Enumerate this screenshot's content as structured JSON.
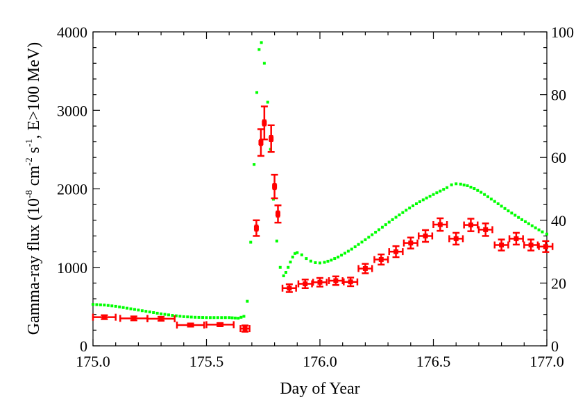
{
  "chart_data": {
    "type": "scatter",
    "title": "",
    "xlabel": "Day of Year",
    "ylabel_main": "Gamma-ray flux (10",
    "ylabel_sup1": "-8",
    "ylabel_mid1": " cm",
    "ylabel_sup2": "-2",
    "ylabel_mid2": " s",
    "ylabel_sup3": "-1",
    "ylabel_end": ", E>100 MeV)",
    "xlim": [
      175.0,
      177.0
    ],
    "ylim_left": [
      0,
      4000
    ],
    "ylim_right": [
      0,
      100
    ],
    "x_ticks": [
      175.0,
      175.5,
      176.0,
      176.5,
      177.0
    ],
    "x_tick_labels": [
      "175.0",
      "175.5",
      "176.0",
      "176.5",
      "177.0"
    ],
    "y_left_ticks": [
      0,
      1000,
      2000,
      3000,
      4000
    ],
    "y_left_tick_labels": [
      "0",
      "1000",
      "2000",
      "3000",
      "4000"
    ],
    "y_right_ticks": [
      0,
      20,
      40,
      60,
      80,
      100
    ],
    "y_right_tick_labels": [
      "0",
      "20",
      "40",
      "60",
      "80",
      "100"
    ],
    "grid": false,
    "colors": {
      "flux": "#ff0000",
      "model": "#00ff00"
    },
    "series": [
      {
        "axis": "left",
        "points": [
          {
            "x": 175.05,
            "y": 365,
            "xerr": 0.05,
            "yerr": 25
          },
          {
            "x": 175.18,
            "y": 350,
            "xerr": 0.06,
            "yerr": 25
          },
          {
            "x": 175.3,
            "y": 345,
            "xerr": 0.06,
            "yerr": 25
          },
          {
            "x": 175.43,
            "y": 265,
            "xerr": 0.06,
            "yerr": 20
          },
          {
            "x": 175.56,
            "y": 270,
            "xerr": 0.06,
            "yerr": 20
          },
          {
            "x": 175.67,
            "y": 220,
            "xerr": 0.02,
            "yerr": 40
          },
          {
            "x": 175.72,
            "y": 1500,
            "xerr": 0.005,
            "yerr": 100
          },
          {
            "x": 175.74,
            "y": 2590,
            "xerr": 0.005,
            "yerr": 170
          },
          {
            "x": 175.755,
            "y": 2840,
            "xerr": 0.005,
            "yerr": 210
          },
          {
            "x": 175.785,
            "y": 2640,
            "xerr": 0.005,
            "yerr": 170
          },
          {
            "x": 175.8,
            "y": 2030,
            "xerr": 0.005,
            "yerr": 150
          },
          {
            "x": 175.815,
            "y": 1680,
            "xerr": 0.005,
            "yerr": 110
          },
          {
            "x": 175.865,
            "y": 735,
            "xerr": 0.03,
            "yerr": 50
          },
          {
            "x": 175.935,
            "y": 790,
            "xerr": 0.03,
            "yerr": 55
          },
          {
            "x": 176.0,
            "y": 810,
            "xerr": 0.03,
            "yerr": 55
          },
          {
            "x": 176.07,
            "y": 830,
            "xerr": 0.03,
            "yerr": 55
          },
          {
            "x": 176.135,
            "y": 815,
            "xerr": 0.03,
            "yerr": 55
          },
          {
            "x": 176.2,
            "y": 985,
            "xerr": 0.03,
            "yerr": 60
          },
          {
            "x": 176.27,
            "y": 1100,
            "xerr": 0.03,
            "yerr": 65
          },
          {
            "x": 176.335,
            "y": 1200,
            "xerr": 0.03,
            "yerr": 70
          },
          {
            "x": 176.4,
            "y": 1310,
            "xerr": 0.03,
            "yerr": 70
          },
          {
            "x": 176.465,
            "y": 1400,
            "xerr": 0.03,
            "yerr": 75
          },
          {
            "x": 176.53,
            "y": 1545,
            "xerr": 0.03,
            "yerr": 80
          },
          {
            "x": 176.6,
            "y": 1365,
            "xerr": 0.03,
            "yerr": 75
          },
          {
            "x": 176.665,
            "y": 1540,
            "xerr": 0.03,
            "yerr": 80
          },
          {
            "x": 176.73,
            "y": 1480,
            "xerr": 0.03,
            "yerr": 80
          },
          {
            "x": 176.8,
            "y": 1285,
            "xerr": 0.03,
            "yerr": 70
          },
          {
            "x": 176.865,
            "y": 1365,
            "xerr": 0.03,
            "yerr": 75
          },
          {
            "x": 176.93,
            "y": 1285,
            "xerr": 0.03,
            "yerr": 70
          },
          {
            "x": 176.995,
            "y": 1265,
            "xerr": 0.03,
            "yerr": 70
          }
        ]
      },
      {
        "axis": "right",
        "points": [
          {
            "x": 175.0,
            "y": 13.2
          },
          {
            "x": 175.05,
            "y": 13.0
          },
          {
            "x": 175.1,
            "y": 12.6
          },
          {
            "x": 175.15,
            "y": 12.0
          },
          {
            "x": 175.2,
            "y": 11.4
          },
          {
            "x": 175.25,
            "y": 10.8
          },
          {
            "x": 175.3,
            "y": 10.2
          },
          {
            "x": 175.35,
            "y": 9.7
          },
          {
            "x": 175.4,
            "y": 9.3
          },
          {
            "x": 175.45,
            "y": 9.1
          },
          {
            "x": 175.5,
            "y": 9.0
          },
          {
            "x": 175.55,
            "y": 9.0
          },
          {
            "x": 175.6,
            "y": 9.0
          },
          {
            "x": 175.64,
            "y": 8.8
          },
          {
            "x": 175.665,
            "y": 9.4
          },
          {
            "x": 175.68,
            "y": 14.2
          },
          {
            "x": 175.695,
            "y": 33.0
          },
          {
            "x": 175.71,
            "y": 57.8
          },
          {
            "x": 175.722,
            "y": 80.7
          },
          {
            "x": 175.732,
            "y": 94.4
          },
          {
            "x": 175.742,
            "y": 96.6
          },
          {
            "x": 175.755,
            "y": 90.0
          },
          {
            "x": 175.77,
            "y": 77.6
          },
          {
            "x": 175.782,
            "y": 62.6
          },
          {
            "x": 175.795,
            "y": 46.7
          },
          {
            "x": 175.81,
            "y": 33.4
          },
          {
            "x": 175.825,
            "y": 25.0
          },
          {
            "x": 175.84,
            "y": 22.3
          },
          {
            "x": 175.85,
            "y": 23.4
          },
          {
            "x": 175.86,
            "y": 25.0
          },
          {
            "x": 175.87,
            "y": 26.7
          },
          {
            "x": 175.88,
            "y": 28.3
          },
          {
            "x": 175.89,
            "y": 29.4
          },
          {
            "x": 175.9,
            "y": 29.7
          },
          {
            "x": 175.92,
            "y": 29.0
          },
          {
            "x": 175.94,
            "y": 27.8
          },
          {
            "x": 175.96,
            "y": 27.0
          },
          {
            "x": 175.98,
            "y": 26.5
          },
          {
            "x": 176.0,
            "y": 26.4
          },
          {
            "x": 176.02,
            "y": 26.6
          },
          {
            "x": 176.05,
            "y": 27.3
          },
          {
            "x": 176.08,
            "y": 28.3
          },
          {
            "x": 176.11,
            "y": 29.5
          },
          {
            "x": 176.14,
            "y": 30.8
          },
          {
            "x": 176.17,
            "y": 32.3
          },
          {
            "x": 176.2,
            "y": 33.8
          },
          {
            "x": 176.23,
            "y": 35.4
          },
          {
            "x": 176.26,
            "y": 37.0
          },
          {
            "x": 176.29,
            "y": 38.6
          },
          {
            "x": 176.32,
            "y": 40.2
          },
          {
            "x": 176.35,
            "y": 41.7
          },
          {
            "x": 176.38,
            "y": 43.2
          },
          {
            "x": 176.41,
            "y": 44.6
          },
          {
            "x": 176.44,
            "y": 45.9
          },
          {
            "x": 176.47,
            "y": 47.1
          },
          {
            "x": 176.5,
            "y": 48.2
          },
          {
            "x": 176.53,
            "y": 49.3
          },
          {
            "x": 176.56,
            "y": 50.4
          },
          {
            "x": 176.58,
            "y": 51.3
          },
          {
            "x": 176.6,
            "y": 51.6
          },
          {
            "x": 176.62,
            "y": 51.5
          },
          {
            "x": 176.65,
            "y": 51.0
          },
          {
            "x": 176.68,
            "y": 50.1
          },
          {
            "x": 176.71,
            "y": 48.9
          },
          {
            "x": 176.74,
            "y": 47.5
          },
          {
            "x": 176.77,
            "y": 46.0
          },
          {
            "x": 176.8,
            "y": 44.5
          },
          {
            "x": 176.83,
            "y": 43.0
          },
          {
            "x": 176.86,
            "y": 41.6
          },
          {
            "x": 176.89,
            "y": 40.2
          },
          {
            "x": 176.92,
            "y": 38.9
          },
          {
            "x": 176.95,
            "y": 37.6
          },
          {
            "x": 176.98,
            "y": 36.3
          },
          {
            "x": 177.0,
            "y": 35.6
          }
        ]
      }
    ]
  }
}
